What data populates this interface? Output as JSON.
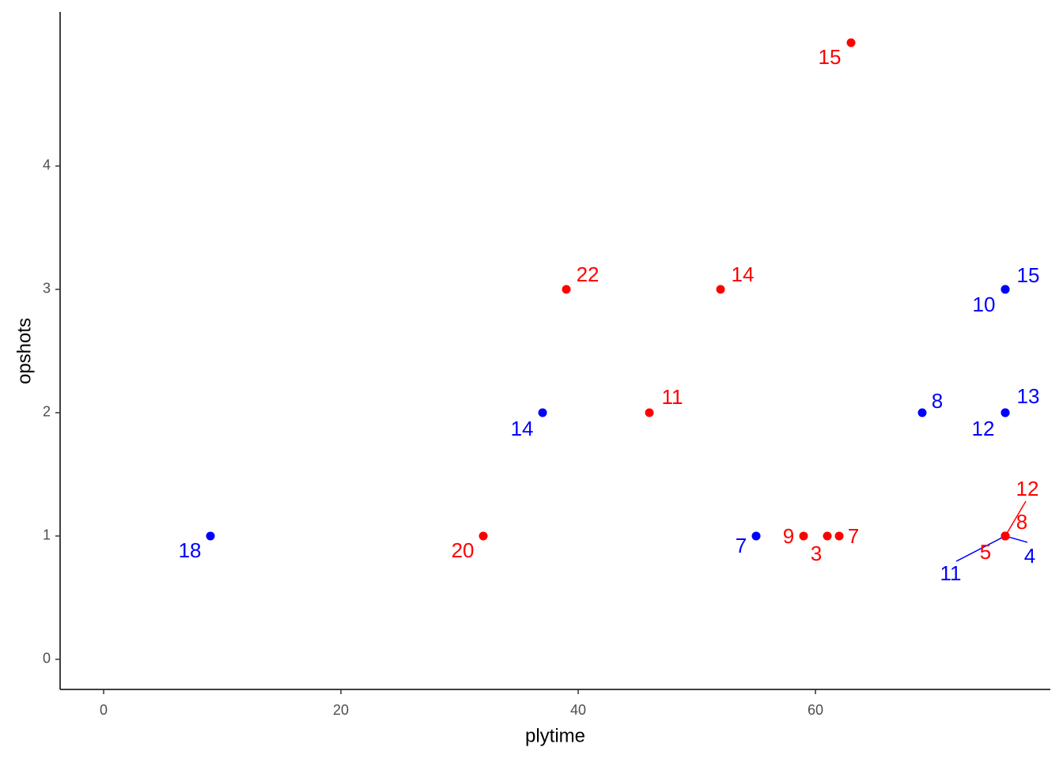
{
  "chart_data": {
    "type": "scatter",
    "x_label": "plytime",
    "y_label": "opshots",
    "xlim": [
      -3.67,
      79.8
    ],
    "ylim": [
      -0.244,
      5.25
    ],
    "xticks": [
      0,
      20,
      40,
      60
    ],
    "yticks": [
      0,
      1,
      2,
      3,
      4
    ],
    "grid": false,
    "series": [
      {
        "color": "#0000ff",
        "x": [
          9,
          37,
          55,
          69,
          76,
          76,
          76,
          76,
          76,
          76
        ],
        "values": [
          1,
          2,
          1,
          2,
          2,
          2,
          3,
          3,
          1,
          1
        ],
        "labels": [
          18,
          14,
          7,
          8,
          12,
          13,
          10,
          15,
          11,
          4
        ]
      },
      {
        "color": "#ff0000",
        "x": [
          32,
          39,
          46,
          52,
          63,
          59,
          61,
          62,
          76,
          76,
          76
        ],
        "values": [
          1,
          3,
          2,
          3,
          5,
          1,
          1,
          1,
          1,
          1,
          1
        ],
        "labels": [
          20,
          22,
          11,
          14,
          15,
          9,
          3,
          7,
          12,
          8,
          5
        ]
      }
    ]
  }
}
